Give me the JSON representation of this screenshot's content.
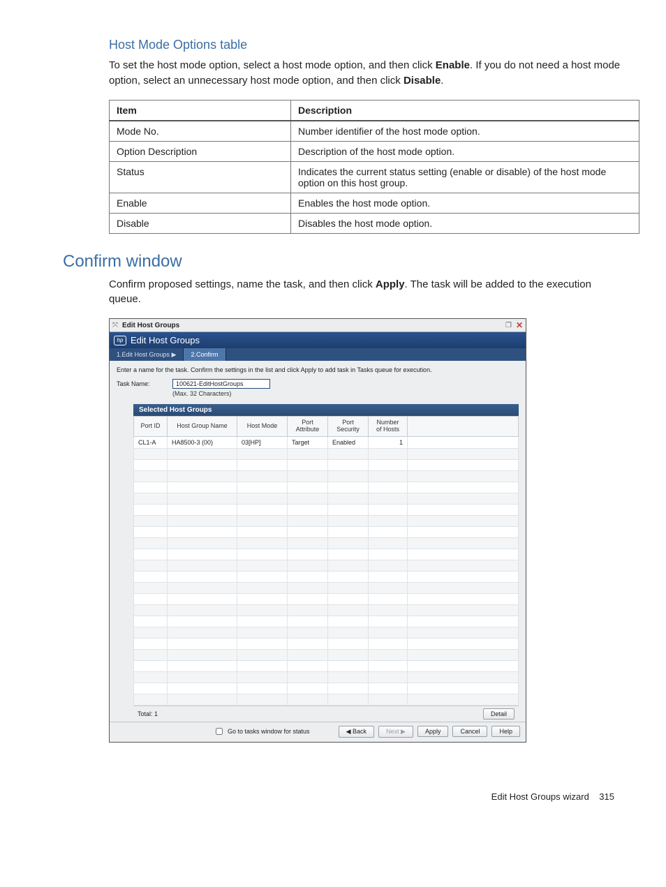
{
  "sec1": {
    "title": "Host Mode Options table",
    "para_pre": "To set the host mode option, select a host mode option, and then click ",
    "bold1": "Enable",
    "para_mid": ". If you do not need a host mode option, select an unnecessary host mode option, and then click ",
    "bold2": "Disable",
    "para_post": "."
  },
  "table1": {
    "head_item": "Item",
    "head_desc": "Description",
    "rows": [
      {
        "item": "Mode No.",
        "desc": "Number identifier of the host mode option."
      },
      {
        "item": "Option Description",
        "desc": "Description of the host mode option."
      },
      {
        "item": "Status",
        "desc": "Indicates the current status setting (enable or disable) of the host mode option on this host group."
      },
      {
        "item": "Enable",
        "desc": "Enables the host mode option."
      },
      {
        "item": "Disable",
        "desc": "Disables the host mode option."
      }
    ]
  },
  "sec2": {
    "title": "Confirm window",
    "para_pre": "Confirm proposed settings, name the task, and then click ",
    "bold1": "Apply",
    "para_post": ". The task will be added to the execution queue."
  },
  "shot": {
    "topbar_title": "Edit Host Groups",
    "hp_badge": "hp",
    "header_title": "Edit Host Groups",
    "crumb1": "1.Edit Host Groups",
    "crumb1_arrow": "▶",
    "crumb2": "2.Confirm",
    "instruction": "Enter a name for the task. Confirm the settings in the list and click Apply to add task in Tasks queue for execution.",
    "taskname_label": "Task Name:",
    "taskname_value": "100621-EditHostGroups",
    "taskname_hint": "(Max. 32 Characters)",
    "grid_title": "Selected Host Groups",
    "cols": {
      "c1": "Port ID",
      "c2": "Host Group Name",
      "c3": "Host Mode",
      "c4_a": "Port",
      "c4_b": "Attribute",
      "c5_a": "Port",
      "c5_b": "Security",
      "c6_a": "Number",
      "c6_b": "of Hosts"
    },
    "row1": {
      "c1": "CL1-A",
      "c2": "HA8500-3 (00)",
      "c3": "03[HP]",
      "c4": "Target",
      "c5": "Enabled",
      "c6": "1"
    },
    "total_label": "Total: 1",
    "detail_btn": "Detail",
    "chk_label": "Go to tasks window for status",
    "btn_back": "◀ Back",
    "btn_next": "Next ▶",
    "btn_apply": "Apply",
    "btn_cancel": "Cancel",
    "btn_help": "Help"
  },
  "footer": {
    "text": "Edit Host Groups wizard",
    "pageno": "315"
  }
}
